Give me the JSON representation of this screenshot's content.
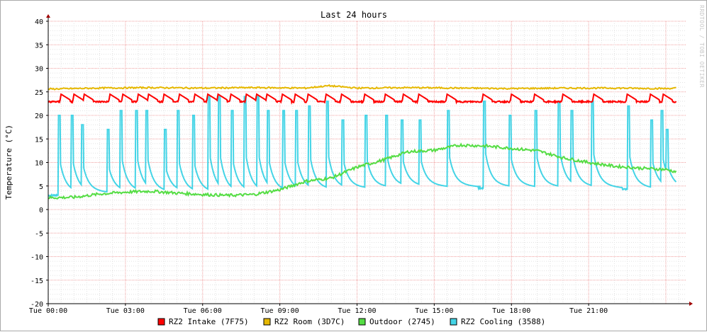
{
  "chart_data": {
    "type": "line",
    "title": "Last 24 hours",
    "ylabel": "Temperature (°C)",
    "watermark": "RRDTOOL / TOBI OETIKER",
    "ylim": [
      -20,
      40
    ],
    "y_ticks": [
      "40",
      "35",
      "30",
      "25",
      "20",
      "15",
      "10",
      "5",
      "0",
      "-5",
      "-10",
      "-15",
      "-20"
    ],
    "x_ticks": [
      "Tue 00:00",
      "Tue 03:00",
      "Tue 06:00",
      "Tue 09:00",
      "Tue 12:00",
      "Tue 15:00",
      "Tue 18:00",
      "Tue 21:00"
    ],
    "x_unit": "hours since Tue 00:00",
    "xlim": [
      0,
      24.8
    ],
    "grid": true,
    "legend_position": "bottom",
    "series": [
      {
        "name": "RZ2 Intake (7F75)",
        "color": "#ff0000",
        "baseline": 22.9,
        "peak_hours": [
          0.5,
          1.0,
          1.4,
          2.4,
          2.9,
          3.5,
          3.9,
          4.5,
          5.1,
          5.7,
          6.2,
          6.6,
          7.1,
          7.7,
          8.1,
          8.5,
          9.1,
          9.6,
          10.1,
          10.8,
          11.4,
          12.3,
          13.1,
          13.8,
          14.4,
          15.5,
          16.9,
          18.0,
          18.9,
          20.0,
          21.2,
          22.5,
          23.4,
          23.9
        ],
        "peak_value": 24.5
      },
      {
        "name": "RZ2 Room (3D7C)",
        "color": "#e6b800",
        "baseline": 25.7,
        "x": [
          0,
          2,
          4,
          6,
          8,
          10,
          10.9,
          12,
          14,
          16,
          18,
          20,
          22,
          24,
          24.4
        ],
        "values": [
          25.6,
          25.8,
          25.9,
          25.8,
          25.9,
          25.8,
          26.3,
          25.8,
          25.9,
          25.8,
          25.7,
          25.8,
          25.8,
          25.7,
          25.8
        ]
      },
      {
        "name": "Outdoor (2745)",
        "color": "#55dd44",
        "x": [
          0,
          1,
          2,
          3,
          4,
          5,
          6,
          7,
          8,
          9,
          10,
          11,
          12,
          13,
          14,
          15,
          16,
          17,
          18,
          19,
          20,
          21,
          22,
          23,
          24,
          24.4
        ],
        "values": [
          2.5,
          2.6,
          3.3,
          3.7,
          3.9,
          3.5,
          3.2,
          3.0,
          3.2,
          4.2,
          6.0,
          6.7,
          9.0,
          10.5,
          12.3,
          12.6,
          13.7,
          13.5,
          13.0,
          12.5,
          11.0,
          10.0,
          9.2,
          8.8,
          8.5,
          8.0
        ]
      },
      {
        "name": "RZ2 Cooling (3588)",
        "color": "#44d4e6",
        "x": [
          0,
          1,
          2,
          3,
          4,
          5,
          6,
          7,
          8,
          9,
          10,
          11,
          12,
          13,
          14,
          15,
          16,
          17,
          18,
          19,
          20,
          21,
          22,
          23,
          24,
          24.4
        ],
        "base": [
          3.0,
          3.2,
          3.3,
          3.4,
          3.5,
          3.4,
          3.3,
          3.3,
          3.4,
          3.5,
          3.7,
          4.0,
          4.2,
          4.4,
          4.6,
          4.6,
          4.6,
          4.6,
          4.6,
          4.5,
          4.5,
          4.5,
          4.4,
          4.3,
          4.2,
          4.2
        ],
        "spikes": [
          {
            "x": 0.4,
            "v": 20
          },
          {
            "x": 0.9,
            "v": 20
          },
          {
            "x": 1.3,
            "v": 18
          },
          {
            "x": 2.3,
            "v": 17
          },
          {
            "x": 2.8,
            "v": 21
          },
          {
            "x": 3.4,
            "v": 21
          },
          {
            "x": 3.8,
            "v": 21
          },
          {
            "x": 4.5,
            "v": 17
          },
          {
            "x": 5.0,
            "v": 21
          },
          {
            "x": 5.6,
            "v": 20
          },
          {
            "x": 6.2,
            "v": 24
          },
          {
            "x": 6.6,
            "v": 24
          },
          {
            "x": 7.1,
            "v": 21
          },
          {
            "x": 7.6,
            "v": 24
          },
          {
            "x": 8.1,
            "v": 24
          },
          {
            "x": 8.5,
            "v": 21
          },
          {
            "x": 9.1,
            "v": 21
          },
          {
            "x": 9.6,
            "v": 21
          },
          {
            "x": 10.1,
            "v": 22
          },
          {
            "x": 10.8,
            "v": 23
          },
          {
            "x": 11.4,
            "v": 19
          },
          {
            "x": 12.3,
            "v": 20
          },
          {
            "x": 13.1,
            "v": 20
          },
          {
            "x": 13.7,
            "v": 19
          },
          {
            "x": 14.4,
            "v": 19
          },
          {
            "x": 15.5,
            "v": 21
          },
          {
            "x": 16.9,
            "v": 23
          },
          {
            "x": 17.9,
            "v": 20
          },
          {
            "x": 18.9,
            "v": 21
          },
          {
            "x": 19.8,
            "v": 23
          },
          {
            "x": 20.3,
            "v": 21
          },
          {
            "x": 21.1,
            "v": 23
          },
          {
            "x": 22.5,
            "v": 22
          },
          {
            "x": 23.4,
            "v": 19
          },
          {
            "x": 23.8,
            "v": 21
          },
          {
            "x": 24.0,
            "v": 17
          }
        ]
      }
    ]
  }
}
